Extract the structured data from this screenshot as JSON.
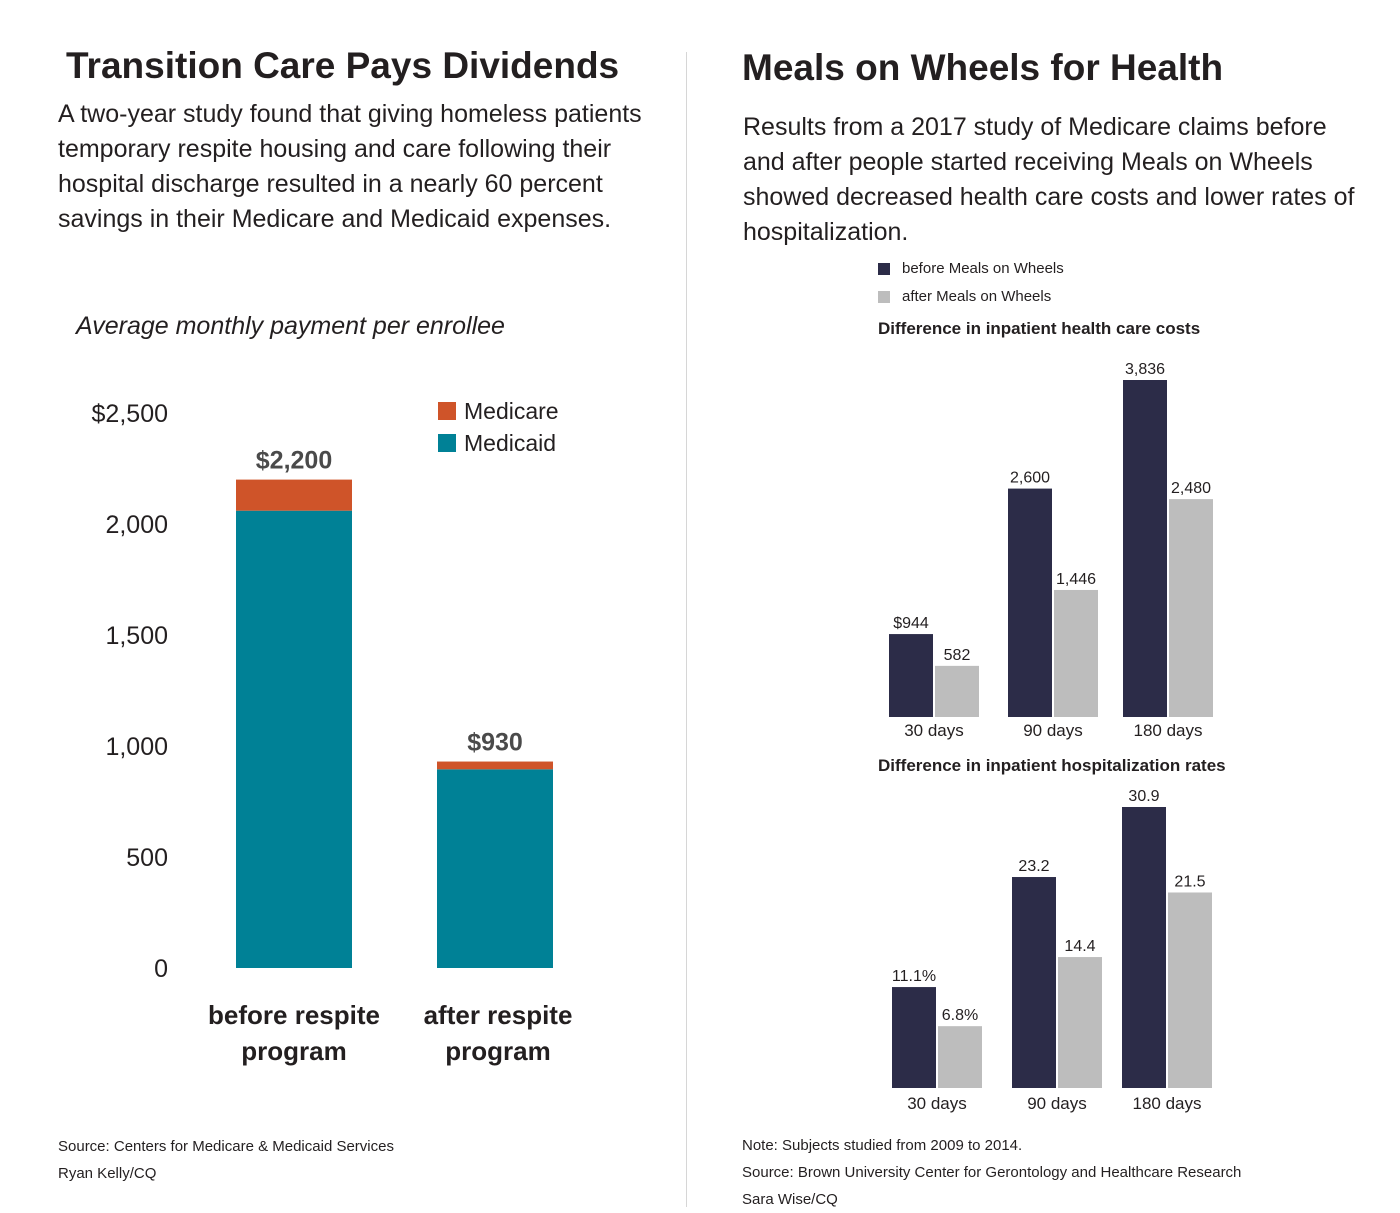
{
  "left": {
    "title": "Transition Care Pays Dividends",
    "intro": "A two-year study found that giving homeless patients temporary respite housing and care following their hospital discharge resulted in a nearly 60 percent savings in their Medicare and Medicaid expenses.",
    "subtitle": "Average monthly payment per enrollee",
    "source": "Source: Centers for Medicare & Medicaid Services",
    "credit": "Ryan Kelly/CQ"
  },
  "right": {
    "title": "Meals on Wheels for Health",
    "intro": "Results from a 2017 study of Medicare claims before and after people started receiving Meals on Wheels showed decreased health care costs and lower rates of hospitalization.",
    "note": "Note: Subjects studied from 2009 to 2014.",
    "source": "Source: Brown University Center for Gerontology and Healthcare Research",
    "credit": "Sara Wise/CQ"
  },
  "colors": {
    "medicare": "#cf5429",
    "medicaid": "#008196",
    "before": "#2c2c48",
    "after": "#bdbdbd",
    "text": "#231f20"
  },
  "chart_data": [
    {
      "type": "bar",
      "stacked": true,
      "title": "",
      "categories": [
        "before respite program",
        "after respite program"
      ],
      "category_lines": [
        [
          "before respite",
          "program"
        ],
        [
          "after respite",
          "program"
        ]
      ],
      "series": [
        {
          "name": "Medicaid",
          "color": "#008196",
          "values": [
            2060,
            895
          ]
        },
        {
          "name": "Medicare",
          "color": "#cf5429",
          "values": [
            140,
            35
          ]
        }
      ],
      "total_labels": [
        "$2,200",
        "$930"
      ],
      "totals": [
        2200,
        930
      ],
      "yticks": [
        0,
        500,
        1000,
        1500,
        2000,
        2500
      ],
      "ytick_labels": [
        "0",
        "500",
        "1,000",
        "1,500",
        "2,000",
        "$2,500"
      ],
      "ylim": [
        0,
        2500
      ],
      "legend": "top-right",
      "grid": false
    },
    {
      "type": "bar",
      "title": "Difference in inpatient health care costs",
      "categories": [
        "30 days",
        "90 days",
        "180 days"
      ],
      "series": [
        {
          "name": "before Meals on Wheels",
          "color": "#2c2c48",
          "values": [
            944,
            2600,
            3836
          ],
          "labels": [
            "$944",
            "2,600",
            "3,836"
          ]
        },
        {
          "name": "after Meals on Wheels",
          "color": "#bdbdbd",
          "values": [
            582,
            1446,
            2480
          ],
          "labels": [
            "582",
            "1,446",
            "2,480"
          ]
        }
      ],
      "ylim": [
        0,
        3836
      ],
      "legend": "top-left",
      "grid": false
    },
    {
      "type": "bar",
      "title": "Difference in inpatient hospitalization rates",
      "categories": [
        "30 days",
        "90 days",
        "180 days"
      ],
      "series": [
        {
          "name": "before Meals on Wheels",
          "color": "#2c2c48",
          "values": [
            11.1,
            23.2,
            30.9
          ],
          "labels": [
            "11.1%",
            "23.2",
            "30.9"
          ]
        },
        {
          "name": "after Meals on Wheels",
          "color": "#bdbdbd",
          "values": [
            6.8,
            14.4,
            21.5
          ],
          "labels": [
            "6.8%",
            "14.4",
            "21.5"
          ]
        }
      ],
      "ylim": [
        0,
        30.9
      ],
      "grid": false
    }
  ]
}
